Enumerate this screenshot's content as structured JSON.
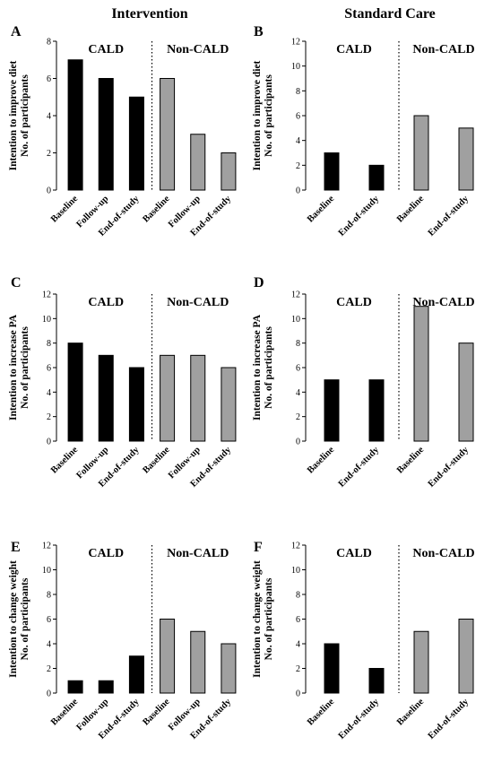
{
  "figure": {
    "column_titles": [
      "Intervention",
      "Standard Care"
    ]
  },
  "colors": {
    "cald_bar": "#000000",
    "noncald_bar": "#a0a0a0",
    "bar_stroke": "#000000"
  },
  "chart_data": [
    {
      "panel": "A",
      "type": "bar",
      "ylabel_line1": "Intention to improve diet",
      "ylabel_line2": "No. of participants",
      "ylim": [
        0,
        8
      ],
      "yticks": [
        0,
        2,
        4,
        6,
        8
      ],
      "groups": [
        {
          "name": "CALD",
          "categories": [
            "Baseline",
            "Follow-up",
            "End-of-study"
          ],
          "values": [
            7,
            6,
            5
          ]
        },
        {
          "name": "Non-CALD",
          "categories": [
            "Baseline",
            "Follow-up",
            "End-of-study"
          ],
          "values": [
            6,
            3,
            2
          ]
        }
      ]
    },
    {
      "panel": "B",
      "type": "bar",
      "ylabel_line1": "Intention to improve diet",
      "ylabel_line2": "No. of participants",
      "ylim": [
        0,
        12
      ],
      "yticks": [
        0,
        2,
        4,
        6,
        8,
        10,
        12
      ],
      "groups": [
        {
          "name": "CALD",
          "categories": [
            "Baseline",
            "End-of-study"
          ],
          "values": [
            3,
            2
          ]
        },
        {
          "name": "Non-CALD",
          "categories": [
            "Baseline",
            "End-of-study"
          ],
          "values": [
            6,
            5
          ]
        }
      ]
    },
    {
      "panel": "C",
      "type": "bar",
      "ylabel_line1": "Intention to increase PA",
      "ylabel_line2": "No. of participants",
      "ylim": [
        0,
        12
      ],
      "yticks": [
        0,
        2,
        4,
        6,
        8,
        10,
        12
      ],
      "groups": [
        {
          "name": "CALD",
          "categories": [
            "Baseline",
            "Follow-up",
            "End-of-study"
          ],
          "values": [
            8,
            7,
            6
          ]
        },
        {
          "name": "Non-CALD",
          "categories": [
            "Baseline",
            "Follow-up",
            "End-of-study"
          ],
          "values": [
            7,
            7,
            6
          ]
        }
      ]
    },
    {
      "panel": "D",
      "type": "bar",
      "ylabel_line1": "Intention to increase PA",
      "ylabel_line2": "No. of participants",
      "ylim": [
        0,
        12
      ],
      "yticks": [
        0,
        2,
        4,
        6,
        8,
        10,
        12
      ],
      "groups": [
        {
          "name": "CALD",
          "categories": [
            "Baseline",
            "End-of-study"
          ],
          "values": [
            5,
            5
          ]
        },
        {
          "name": "Non-CALD",
          "categories": [
            "Baseline",
            "End-of-study"
          ],
          "values": [
            11,
            8
          ]
        }
      ]
    },
    {
      "panel": "E",
      "type": "bar",
      "ylabel_line1": "Intention to change weight",
      "ylabel_line2": "No. of participants",
      "ylim": [
        0,
        12
      ],
      "yticks": [
        0,
        2,
        4,
        6,
        8,
        10,
        12
      ],
      "groups": [
        {
          "name": "CALD",
          "categories": [
            "Baseline",
            "Follow-up",
            "End-of-study"
          ],
          "values": [
            1,
            1,
            3
          ]
        },
        {
          "name": "Non-CALD",
          "categories": [
            "Baseline",
            "Follow-up",
            "End-of-study"
          ],
          "values": [
            6,
            5,
            4
          ]
        }
      ]
    },
    {
      "panel": "F",
      "type": "bar",
      "ylabel_line1": "Intention to change weight",
      "ylabel_line2": "No. of participants",
      "ylim": [
        0,
        12
      ],
      "yticks": [
        0,
        2,
        4,
        6,
        8,
        10,
        12
      ],
      "groups": [
        {
          "name": "CALD",
          "categories": [
            "Baseline",
            "End-of-study"
          ],
          "values": [
            4,
            2
          ]
        },
        {
          "name": "Non-CALD",
          "categories": [
            "Baseline",
            "End-of-study"
          ],
          "values": [
            5,
            6
          ]
        }
      ]
    }
  ]
}
